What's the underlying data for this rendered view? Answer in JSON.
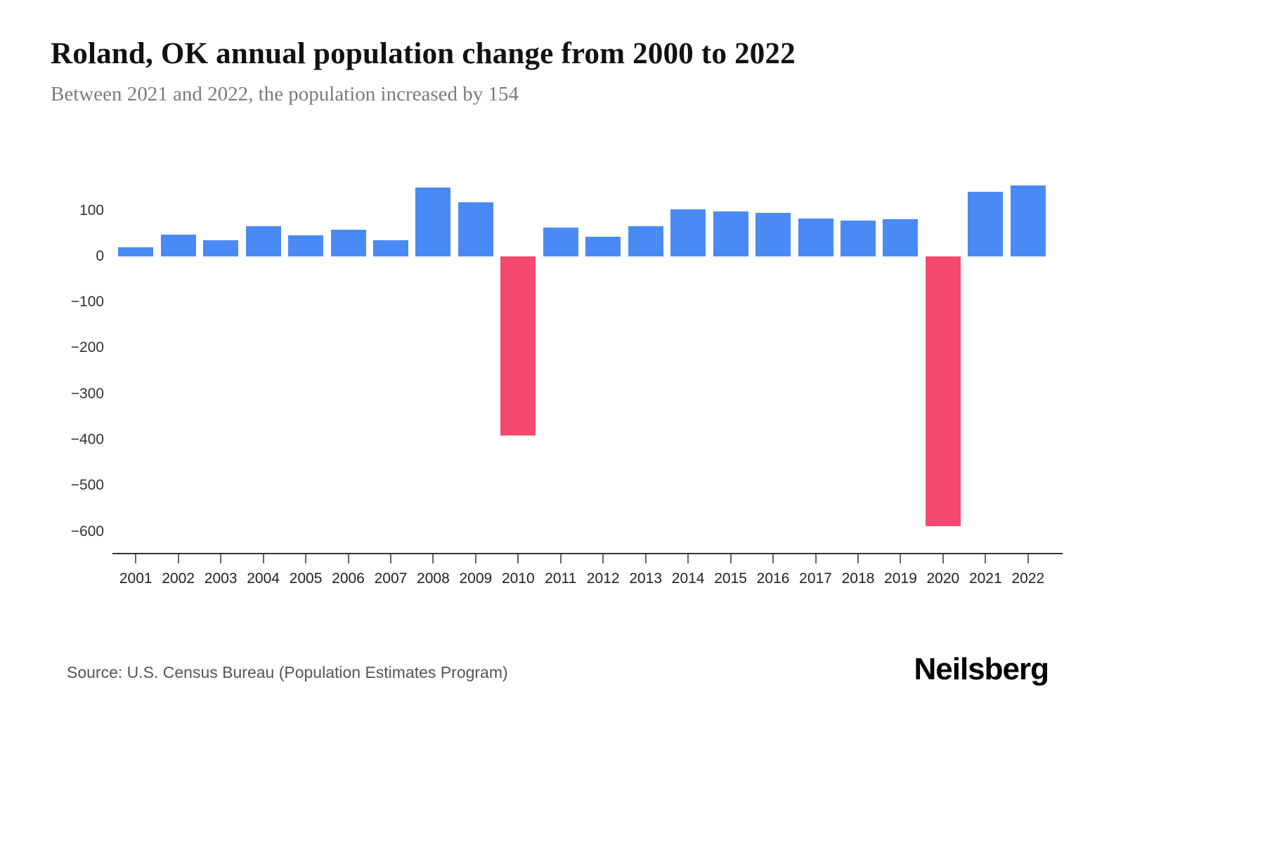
{
  "header": {
    "title": "Roland, OK annual population change from 2000 to 2022",
    "subtitle": "Between 2021 and 2022, the population increased by 154"
  },
  "footer": {
    "source": "Source: U.S. Census Bureau (Population Estimates Program)",
    "brand": "Neilsberg"
  },
  "colors": {
    "positive": "#4a8af4",
    "negative": "#f5496d",
    "axis": "#333333",
    "tick": "#666666",
    "background": "#ffffff"
  },
  "chart_data": {
    "type": "bar",
    "title": "Roland, OK annual population change from 2000 to 2022",
    "subtitle": "Between 2021 and 2022, the population increased by 154",
    "xlabel": "",
    "ylabel": "",
    "categories": [
      "2001",
      "2002",
      "2003",
      "2004",
      "2005",
      "2006",
      "2007",
      "2008",
      "2009",
      "2010",
      "2011",
      "2012",
      "2013",
      "2014",
      "2015",
      "2016",
      "2017",
      "2018",
      "2019",
      "2020",
      "2021",
      "2022"
    ],
    "values": [
      20,
      48,
      35,
      65,
      45,
      58,
      35,
      150,
      118,
      -390,
      62,
      43,
      65,
      103,
      98,
      95,
      83,
      78,
      81,
      -588,
      140,
      154
    ],
    "positive_color": "#4a8af4",
    "negative_color": "#f5496d",
    "ylim": [
      -648,
      179
    ],
    "grid": false,
    "legend": "none",
    "yticks": [
      {
        "value": 100,
        "label": "100"
      },
      {
        "value": 0,
        "label": "0"
      },
      {
        "value": -100,
        "label": "−100"
      },
      {
        "value": -200,
        "label": "−200"
      },
      {
        "value": -300,
        "label": "−300"
      },
      {
        "value": -400,
        "label": "−400"
      },
      {
        "value": -500,
        "label": "−500"
      },
      {
        "value": -600,
        "label": "−600"
      }
    ]
  }
}
